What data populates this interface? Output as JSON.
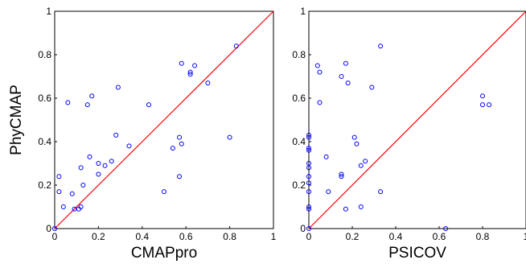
{
  "chart_data": [
    {
      "type": "scatter",
      "xlabel": "CMAPpro",
      "ylabel": "PhyCMAP",
      "xlim": [
        0,
        1
      ],
      "ylim": [
        0,
        1
      ],
      "xticks": [
        "0",
        "0.2",
        "0.4",
        "0.6",
        "0.8",
        "1"
      ],
      "yticks": [
        "0",
        "0.2",
        "0.4",
        "0.6",
        "0.8",
        "1"
      ],
      "diagonal_line": true,
      "grid": false,
      "marker_color": "#0000ff",
      "line_color": "#ff0000",
      "points": [
        [
          0.0,
          0.0
        ],
        [
          0.02,
          0.24
        ],
        [
          0.02,
          0.17
        ],
        [
          0.04,
          0.1
        ],
        [
          0.06,
          0.58
        ],
        [
          0.08,
          0.16
        ],
        [
          0.09,
          0.09
        ],
        [
          0.11,
          0.09
        ],
        [
          0.12,
          0.1
        ],
        [
          0.12,
          0.28
        ],
        [
          0.13,
          0.2
        ],
        [
          0.15,
          0.57
        ],
        [
          0.16,
          0.33
        ],
        [
          0.17,
          0.61
        ],
        [
          0.2,
          0.25
        ],
        [
          0.2,
          0.3
        ],
        [
          0.23,
          0.29
        ],
        [
          0.26,
          0.31
        ],
        [
          0.28,
          0.43
        ],
        [
          0.29,
          0.65
        ],
        [
          0.34,
          0.38
        ],
        [
          0.43,
          0.57
        ],
        [
          0.5,
          0.17
        ],
        [
          0.54,
          0.37
        ],
        [
          0.57,
          0.42
        ],
        [
          0.57,
          0.24
        ],
        [
          0.58,
          0.39
        ],
        [
          0.58,
          0.76
        ],
        [
          0.62,
          0.71
        ],
        [
          0.62,
          0.72
        ],
        [
          0.64,
          0.75
        ],
        [
          0.7,
          0.67
        ],
        [
          0.8,
          0.42
        ],
        [
          0.83,
          0.84
        ]
      ]
    },
    {
      "type": "scatter",
      "xlabel": "PSICOV",
      "ylabel": "",
      "xlim": [
        0,
        1
      ],
      "ylim": [
        0,
        1
      ],
      "xticks": [
        "0",
        "0.2",
        "0.4",
        "0.6",
        "0.8",
        "1"
      ],
      "yticks": [
        "0",
        "0.2",
        "0.4",
        "0.6",
        "0.8",
        "1"
      ],
      "diagonal_line": true,
      "grid": false,
      "marker_color": "#0000ff",
      "line_color": "#ff0000",
      "points": [
        [
          0.0,
          0.43
        ],
        [
          0.0,
          0.42
        ],
        [
          0.0,
          0.37
        ],
        [
          0.0,
          0.36
        ],
        [
          0.0,
          0.3
        ],
        [
          0.0,
          0.28
        ],
        [
          0.0,
          0.24
        ],
        [
          0.0,
          0.21
        ],
        [
          0.0,
          0.17
        ],
        [
          0.0,
          0.1
        ],
        [
          0.0,
          0.09
        ],
        [
          0.0,
          0.0
        ],
        [
          0.04,
          0.75
        ],
        [
          0.05,
          0.72
        ],
        [
          0.05,
          0.58
        ],
        [
          0.08,
          0.33
        ],
        [
          0.09,
          0.17
        ],
        [
          0.15,
          0.7
        ],
        [
          0.15,
          0.25
        ],
        [
          0.15,
          0.24
        ],
        [
          0.17,
          0.09
        ],
        [
          0.17,
          0.76
        ],
        [
          0.18,
          0.67
        ],
        [
          0.21,
          0.42
        ],
        [
          0.22,
          0.39
        ],
        [
          0.24,
          0.29
        ],
        [
          0.24,
          0.1
        ],
        [
          0.26,
          0.31
        ],
        [
          0.29,
          0.65
        ],
        [
          0.33,
          0.84
        ],
        [
          0.33,
          0.17
        ],
        [
          0.63,
          0.0
        ],
        [
          0.8,
          0.61
        ],
        [
          0.8,
          0.57
        ],
        [
          0.83,
          0.57
        ]
      ]
    }
  ]
}
